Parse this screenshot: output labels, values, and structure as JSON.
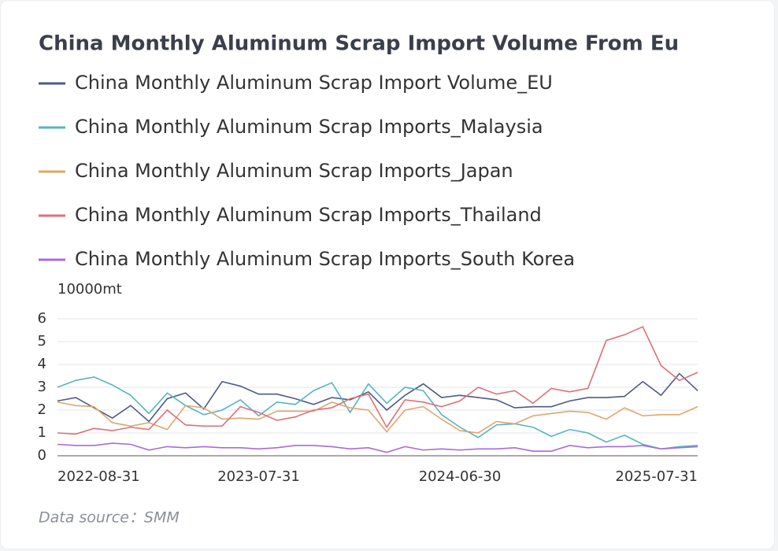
{
  "chart_data": {
    "type": "line",
    "title": "China Monthly Aluminum Scrap Import Volume From Eu",
    "y_label": "10000mt",
    "source": "Data source：SMM",
    "categories": [
      "2022-08-31",
      null,
      null,
      null,
      null,
      null,
      null,
      null,
      null,
      null,
      null,
      "2023-07-31",
      null,
      null,
      null,
      null,
      null,
      null,
      null,
      null,
      null,
      null,
      "2024-06-30",
      null,
      null,
      null,
      null,
      null,
      null,
      null,
      null,
      null,
      null,
      null,
      null,
      "2025-07-31"
    ],
    "ylim": [
      0,
      6
    ],
    "yticks": [
      0,
      1,
      2,
      3,
      4,
      5,
      6
    ],
    "grid": true,
    "series": [
      {
        "name": "China Monthly Aluminum Scrap Import Volume_EU",
        "color": "#4e5a85",
        "values": [
          2.4,
          2.55,
          2.1,
          1.65,
          2.2,
          1.5,
          2.5,
          2.75,
          2.05,
          3.25,
          3.05,
          2.7,
          2.7,
          2.5,
          2.25,
          2.55,
          2.45,
          2.8,
          2.0,
          2.65,
          3.15,
          2.55,
          2.65,
          2.55,
          2.45,
          2.1,
          2.15,
          2.15,
          2.4,
          2.55,
          2.55,
          2.6,
          3.25,
          2.65,
          3.6,
          2.85
        ]
      },
      {
        "name": "China Monthly Aluminum Scrap Imports_Malaysia",
        "color": "#56b4bf",
        "values": [
          3.0,
          3.3,
          3.45,
          3.1,
          2.65,
          1.85,
          2.75,
          2.2,
          1.8,
          2.0,
          2.45,
          1.75,
          2.35,
          2.25,
          2.85,
          3.2,
          1.9,
          3.15,
          2.3,
          3.0,
          2.85,
          1.8,
          1.25,
          0.8,
          1.35,
          1.4,
          1.25,
          0.85,
          1.15,
          1.0,
          0.6,
          0.9,
          0.5,
          0.3,
          0.4,
          0.45
        ]
      },
      {
        "name": "China Monthly Aluminum Scrap Imports_Japan",
        "color": "#e0a66b",
        "values": [
          2.35,
          2.2,
          2.15,
          1.45,
          1.3,
          1.45,
          1.15,
          2.2,
          2.1,
          1.6,
          1.65,
          1.6,
          1.95,
          1.95,
          1.95,
          2.35,
          2.1,
          2.0,
          1.05,
          2.0,
          2.15,
          1.6,
          1.1,
          1.0,
          1.5,
          1.4,
          1.75,
          1.85,
          1.95,
          1.9,
          1.6,
          2.1,
          1.75,
          1.8,
          1.8,
          2.15
        ]
      },
      {
        "name": "China Monthly Aluminum Scrap Imports_Thailand",
        "color": "#e06f76",
        "values": [
          1.0,
          0.95,
          1.2,
          1.1,
          1.25,
          1.15,
          2.0,
          1.35,
          1.3,
          1.3,
          2.15,
          1.9,
          1.55,
          1.7,
          2.0,
          2.1,
          2.5,
          2.7,
          1.25,
          2.45,
          2.35,
          2.15,
          2.4,
          3.0,
          2.7,
          2.85,
          2.3,
          2.95,
          2.8,
          2.95,
          5.05,
          5.3,
          5.65,
          3.95,
          3.3,
          3.65
        ]
      },
      {
        "name": "China Monthly Aluminum Scrap Imports_South Korea",
        "color": "#a66be0",
        "values": [
          0.5,
          0.45,
          0.45,
          0.55,
          0.5,
          0.25,
          0.4,
          0.35,
          0.4,
          0.35,
          0.35,
          0.3,
          0.35,
          0.45,
          0.45,
          0.4,
          0.3,
          0.35,
          0.15,
          0.4,
          0.25,
          0.3,
          0.25,
          0.3,
          0.3,
          0.35,
          0.2,
          0.2,
          0.45,
          0.35,
          0.4,
          0.4,
          0.45,
          0.3,
          0.35,
          0.4
        ]
      }
    ]
  }
}
